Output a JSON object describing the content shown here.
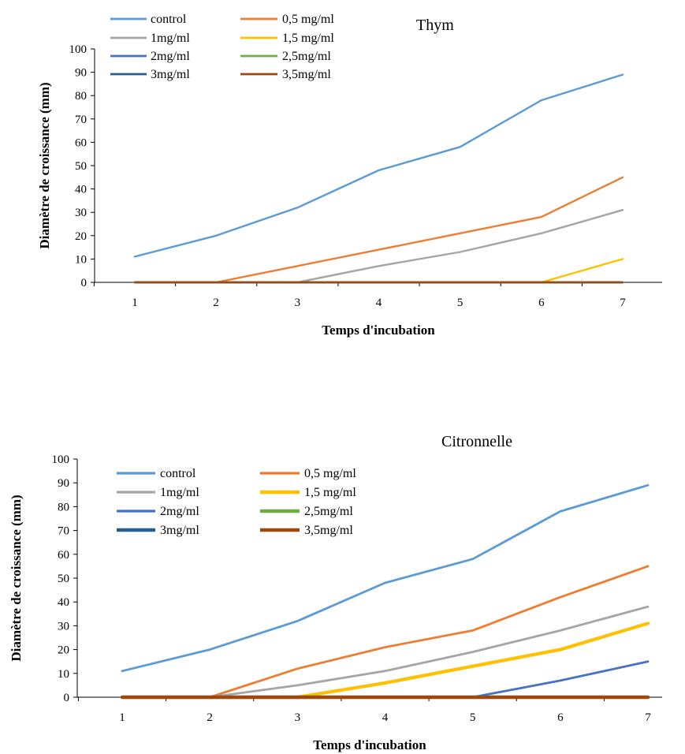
{
  "chart_data": [
    {
      "type": "line",
      "title": "Thym",
      "xlabel": "Temps d'incubation",
      "ylabel": "Diamètre de croissance (mm)",
      "categories": [
        "1",
        "2",
        "3",
        "4",
        "5",
        "6",
        "7"
      ],
      "ylim": [
        0,
        100
      ],
      "yticks": [
        "0",
        "10",
        "20",
        "30",
        "40",
        "50",
        "60",
        "70",
        "80",
        "90",
        "100"
      ],
      "legend_position": "top-left",
      "grid": false,
      "series": [
        {
          "name": "control",
          "color": "#5b9bd5",
          "values": [
            11,
            20,
            32,
            48,
            58,
            78,
            89
          ]
        },
        {
          "name": "0,5 mg/ml",
          "color": "#ed7d31",
          "values": [
            0,
            0,
            7,
            14,
            21,
            28,
            45
          ]
        },
        {
          "name": "1mg/ml",
          "color": "#a5a5a5",
          "values": [
            0,
            0,
            0,
            7,
            13,
            21,
            31
          ]
        },
        {
          "name": "1,5  mg/ml",
          "color": "#ffc000",
          "values": [
            0,
            0,
            0,
            0,
            0,
            0,
            10
          ]
        },
        {
          "name": "2mg/ml",
          "color": "#4472c4",
          "values": [
            0,
            0,
            0,
            0,
            0,
            0,
            0
          ]
        },
        {
          "name": "2,5mg/ml",
          "color": "#70ad47",
          "values": [
            0,
            0,
            0,
            0,
            0,
            0,
            0
          ]
        },
        {
          "name": "3mg/ml",
          "color": "#255e91",
          "values": [
            0,
            0,
            0,
            0,
            0,
            0,
            0
          ]
        },
        {
          "name": "3,5mg/ml",
          "color": "#9e480e",
          "values": [
            0,
            0,
            0,
            0,
            0,
            0,
            0
          ]
        }
      ]
    },
    {
      "type": "line",
      "title": "Citronnelle",
      "xlabel": "Temps d'incubation",
      "ylabel": "Diamètre de croissance (mm)",
      "categories": [
        "1",
        "2",
        "3",
        "4",
        "5",
        "6",
        "7"
      ],
      "ylim": [
        0,
        100
      ],
      "yticks": [
        "0",
        "10",
        "20",
        "30",
        "40",
        "50",
        "60",
        "70",
        "80",
        "90",
        "100"
      ],
      "legend_position": "top-left",
      "grid": false,
      "series": [
        {
          "name": "control",
          "color": "#5b9bd5",
          "values": [
            11,
            20,
            32,
            48,
            58,
            78,
            89
          ]
        },
        {
          "name": "0,5 mg/ml",
          "color": "#ed7d31",
          "values": [
            0,
            0,
            12,
            21,
            28,
            42,
            55
          ]
        },
        {
          "name": "1mg/ml",
          "color": "#a5a5a5",
          "values": [
            0,
            0,
            5,
            11,
            19,
            28,
            38
          ]
        },
        {
          "name": "1,5  mg/ml",
          "color": "#ffc000",
          "values": [
            0,
            0,
            0,
            6,
            13,
            20,
            31
          ]
        },
        {
          "name": "2mg/ml",
          "color": "#4472c4",
          "values": [
            0,
            0,
            0,
            0,
            0,
            7,
            15
          ]
        },
        {
          "name": "2,5mg/ml",
          "color": "#70ad47",
          "values": [
            0,
            0,
            0,
            0,
            0,
            0,
            0
          ]
        },
        {
          "name": "3mg/ml",
          "color": "#255e91",
          "values": [
            0,
            0,
            0,
            0,
            0,
            0,
            0
          ]
        },
        {
          "name": "3,5mg/ml",
          "color": "#9e480e",
          "values": [
            0,
            0,
            0,
            0,
            0,
            0,
            0
          ]
        }
      ]
    }
  ]
}
